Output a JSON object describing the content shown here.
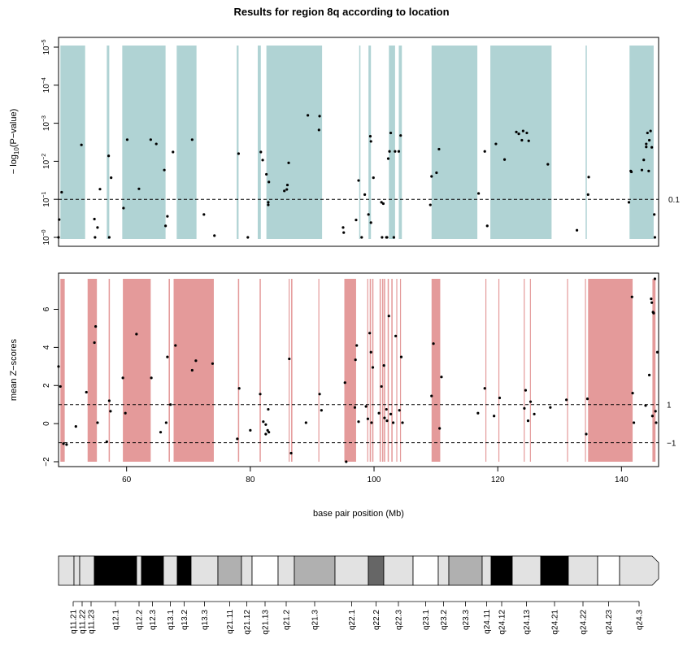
{
  "title": "Results for region 8q according to location",
  "chart_data": [
    {
      "type": "scatter",
      "panel": "p-values",
      "ylabel": "-log10(P-value)",
      "ylabel_parts": {
        "prefix": "− log",
        "sub": "10",
        "suffix": "(P−value)"
      },
      "y_scale": "log (inverted)",
      "ylim": [
        1,
        1e-05
      ],
      "y_ticks": [
        {
          "mantissa": "10",
          "exp": "−5",
          "value": 1e-05
        },
        {
          "mantissa": "10",
          "exp": "−4",
          "value": 0.0001
        },
        {
          "mantissa": "10",
          "exp": "−3",
          "value": 0.001
        },
        {
          "mantissa": "10",
          "exp": "−2",
          "value": 0.01
        },
        {
          "mantissa": "10",
          "exp": "−1",
          "value": 0.1
        },
        {
          "mantissa": "10",
          "exp": "−0",
          "value": 1
        }
      ],
      "threshold": {
        "value": 0.1,
        "label": "0.1",
        "style": "dashed"
      },
      "shade_color": "#b0d3d4",
      "shaded_regions": [
        [
          49.3,
          53.3
        ],
        [
          56.8,
          57.2
        ],
        [
          59.3,
          66.3
        ],
        [
          68.1,
          71.3
        ],
        [
          77.8,
          78.1
        ],
        [
          81.2,
          81.7
        ],
        [
          82.6,
          91.6
        ],
        [
          97.6,
          97.8
        ],
        [
          99.1,
          99.5
        ],
        [
          102.4,
          103.4
        ],
        [
          104.0,
          104.5
        ],
        [
          109.3,
          116.7
        ],
        [
          118.8,
          128.7
        ],
        [
          134.2,
          134.4
        ],
        [
          141.3,
          145.2
        ]
      ],
      "points": [
        [
          49.0,
          1.0
        ],
        [
          49.1,
          0.34
        ],
        [
          49.5,
          0.065
        ],
        [
          52.7,
          0.0037
        ],
        [
          54.8,
          0.33
        ],
        [
          54.9,
          1.0
        ],
        [
          55.3,
          0.55
        ],
        [
          55.7,
          0.054
        ],
        [
          57.1,
          0.0072
        ],
        [
          57.2,
          1.0
        ],
        [
          57.5,
          0.027
        ],
        [
          59.5,
          0.17
        ],
        [
          60.1,
          0.0027
        ],
        [
          62.0,
          0.053
        ],
        [
          63.9,
          0.0027
        ],
        [
          64.8,
          0.0035
        ],
        [
          66.1,
          0.017
        ],
        [
          66.3,
          0.5
        ],
        [
          66.6,
          0.28
        ],
        [
          67.5,
          0.0057
        ],
        [
          70.6,
          0.0027
        ],
        [
          72.5,
          0.25
        ],
        [
          74.2,
          0.9
        ],
        [
          78.1,
          0.0063
        ],
        [
          79.6,
          1.0
        ],
        [
          81.7,
          0.0057
        ],
        [
          82.0,
          0.0093
        ],
        [
          82.6,
          0.022
        ],
        [
          82.9,
          0.12
        ],
        [
          82.9,
          0.14
        ],
        [
          83.0,
          0.035
        ],
        [
          85.5,
          0.06
        ],
        [
          85.9,
          0.055
        ],
        [
          86.0,
          0.042
        ],
        [
          86.2,
          0.011
        ],
        [
          89.3,
          0.00062
        ],
        [
          91.1,
          0.0015
        ],
        [
          91.2,
          0.00065
        ],
        [
          95.0,
          0.55
        ],
        [
          95.1,
          0.75
        ],
        [
          97.1,
          0.35
        ],
        [
          97.5,
          0.032
        ],
        [
          98.0,
          1.0
        ],
        [
          98.5,
          0.075
        ],
        [
          99.1,
          0.25
        ],
        [
          99.4,
          0.0022
        ],
        [
          99.5,
          0.003
        ],
        [
          99.5,
          0.41
        ],
        [
          99.9,
          0.027
        ],
        [
          101.2,
          0.12
        ],
        [
          101.3,
          1.0
        ],
        [
          101.5,
          0.13
        ],
        [
          102.0,
          1.0
        ],
        [
          102.1,
          1.0
        ],
        [
          102.3,
          0.0085
        ],
        [
          102.5,
          0.0055
        ],
        [
          102.7,
          0.0018
        ],
        [
          103.2,
          1.0
        ],
        [
          103.4,
          0.0055
        ],
        [
          104.0,
          0.0055
        ],
        [
          104.3,
          0.0021
        ],
        [
          109.1,
          0.14
        ],
        [
          109.3,
          0.025
        ],
        [
          110.1,
          0.02
        ],
        [
          110.5,
          0.0048
        ],
        [
          116.9,
          0.07
        ],
        [
          117.9,
          0.0055
        ],
        [
          118.3,
          0.5
        ],
        [
          119.7,
          0.0035
        ],
        [
          121.1,
          0.009
        ],
        [
          123.0,
          0.0017
        ],
        [
          123.4,
          0.0019
        ],
        [
          123.9,
          0.0028
        ],
        [
          124.1,
          0.0016
        ],
        [
          124.7,
          0.0018
        ],
        [
          125.0,
          0.0029
        ],
        [
          128.1,
          0.012
        ],
        [
          132.8,
          0.65
        ],
        [
          134.6,
          0.075
        ],
        [
          134.7,
          0.026
        ],
        [
          141.2,
          0.12
        ],
        [
          141.5,
          0.018
        ],
        [
          141.6,
          0.019
        ],
        [
          143.3,
          0.017
        ],
        [
          143.6,
          0.0092
        ],
        [
          144.0,
          0.0035
        ],
        [
          144.0,
          0.0042
        ],
        [
          144.2,
          0.0018
        ],
        [
          144.4,
          0.018
        ],
        [
          144.5,
          0.0028
        ],
        [
          144.7,
          0.0016
        ],
        [
          144.9,
          0.0043
        ],
        [
          145.3,
          0.25
        ],
        [
          145.4,
          1.0
        ]
      ]
    },
    {
      "type": "scatter",
      "panel": "z-scores",
      "ylabel": "mean Z−scores",
      "ylim": [
        -2.0,
        7.6
      ],
      "y_ticks": [
        "−2",
        "0",
        "2",
        "4",
        "6"
      ],
      "y_tick_values": [
        -2,
        0,
        2,
        4,
        6
      ],
      "thresholds": [
        {
          "value": 1,
          "label": "1"
        },
        {
          "value": -1,
          "label": "−1"
        }
      ],
      "shade_color": "#e49a9a",
      "shaded_regions": [
        [
          49.3,
          50.0
        ],
        [
          53.7,
          55.2
        ],
        [
          57.1,
          57.3
        ],
        [
          59.4,
          63.9
        ],
        [
          66.8,
          67.0
        ],
        [
          67.6,
          74.1
        ],
        [
          78.0,
          78.2
        ],
        [
          81.5,
          81.7
        ],
        [
          86.2,
          86.3
        ],
        [
          86.6,
          86.8
        ],
        [
          91.0,
          91.1
        ],
        [
          95.2,
          97.1
        ],
        [
          98.9,
          99.0
        ],
        [
          99.3,
          99.5
        ],
        [
          99.7,
          99.9
        ],
        [
          100.9,
          101.1
        ],
        [
          101.3,
          101.5
        ],
        [
          101.6,
          101.8
        ],
        [
          102.2,
          102.4
        ],
        [
          102.8,
          103.0
        ],
        [
          103.6,
          103.7
        ],
        [
          104.2,
          104.3
        ],
        [
          109.3,
          110.7
        ],
        [
          118.0,
          118.1
        ],
        [
          120.1,
          120.2
        ],
        [
          124.2,
          124.3
        ],
        [
          125.2,
          125.3
        ],
        [
          131.2,
          131.3
        ],
        [
          134.1,
          134.2
        ],
        [
          134.6,
          141.8
        ],
        [
          145.0,
          145.5
        ]
      ],
      "points": [
        [
          49.0,
          3.0
        ],
        [
          49.3,
          1.95
        ],
        [
          49.8,
          -1.05
        ],
        [
          50.3,
          -1.1
        ],
        [
          51.8,
          -0.15
        ],
        [
          53.5,
          1.65
        ],
        [
          54.8,
          4.25
        ],
        [
          55.0,
          5.1
        ],
        [
          55.3,
          0.05
        ],
        [
          56.8,
          -0.95
        ],
        [
          57.2,
          1.2
        ],
        [
          57.4,
          0.65
        ],
        [
          59.4,
          2.4
        ],
        [
          59.8,
          0.55
        ],
        [
          61.6,
          4.7
        ],
        [
          64.0,
          2.4
        ],
        [
          65.5,
          -0.45
        ],
        [
          66.4,
          0.05
        ],
        [
          66.6,
          3.5
        ],
        [
          67.1,
          1.0
        ],
        [
          67.9,
          4.1
        ],
        [
          70.6,
          2.8
        ],
        [
          71.2,
          3.3
        ],
        [
          73.9,
          3.15
        ],
        [
          77.9,
          -0.8
        ],
        [
          78.2,
          1.85
        ],
        [
          80.0,
          -0.35
        ],
        [
          81.6,
          1.55
        ],
        [
          82.1,
          0.1
        ],
        [
          82.5,
          -0.05
        ],
        [
          82.5,
          -0.55
        ],
        [
          82.8,
          -0.35
        ],
        [
          82.9,
          0.75
        ],
        [
          83.0,
          -0.45
        ],
        [
          86.3,
          3.4
        ],
        [
          86.6,
          -1.55
        ],
        [
          89.0,
          0.05
        ],
        [
          91.2,
          1.55
        ],
        [
          91.5,
          0.7
        ],
        [
          95.3,
          2.15
        ],
        [
          95.5,
          -2.0
        ],
        [
          96.9,
          0.85
        ],
        [
          97.0,
          3.35
        ],
        [
          97.5,
          0.1
        ],
        [
          97.2,
          4.1
        ],
        [
          98.7,
          0.9
        ],
        [
          99.0,
          0.25
        ],
        [
          99.3,
          4.75
        ],
        [
          99.5,
          3.75
        ],
        [
          99.6,
          0.05
        ],
        [
          99.8,
          2.95
        ],
        [
          100.8,
          0.55
        ],
        [
          101.2,
          1.95
        ],
        [
          101.6,
          3.05
        ],
        [
          101.7,
          0.3
        ],
        [
          102.0,
          0.75
        ],
        [
          102.1,
          0.15
        ],
        [
          102.4,
          5.65
        ],
        [
          102.7,
          0.5
        ],
        [
          103.1,
          0.05
        ],
        [
          103.5,
          4.6
        ],
        [
          104.1,
          0.7
        ],
        [
          104.4,
          3.5
        ],
        [
          104.6,
          0.05
        ],
        [
          109.3,
          1.45
        ],
        [
          109.6,
          4.2
        ],
        [
          110.6,
          -0.25
        ],
        [
          110.9,
          2.45
        ],
        [
          116.8,
          0.55
        ],
        [
          117.9,
          1.85
        ],
        [
          119.4,
          0.4
        ],
        [
          120.3,
          1.35
        ],
        [
          124.3,
          0.8
        ],
        [
          124.5,
          1.75
        ],
        [
          124.9,
          0.15
        ],
        [
          125.3,
          1.15
        ],
        [
          125.9,
          0.5
        ],
        [
          128.5,
          0.85
        ],
        [
          131.1,
          1.25
        ],
        [
          134.3,
          -0.55
        ],
        [
          134.5,
          1.3
        ],
        [
          141.7,
          6.65
        ],
        [
          141.8,
          1.6
        ],
        [
          142.0,
          0.05
        ],
        [
          143.9,
          0.95
        ],
        [
          144.5,
          2.55
        ],
        [
          144.8,
          6.55
        ],
        [
          144.9,
          6.35
        ],
        [
          145.1,
          5.85
        ],
        [
          145.0,
          0.4
        ],
        [
          145.2,
          5.8
        ],
        [
          145.4,
          7.6
        ],
        [
          145.5,
          0.65
        ],
        [
          145.6,
          0.05
        ],
        [
          145.8,
          3.75
        ]
      ]
    }
  ],
  "x_axis": {
    "label": "base pair position (Mb)",
    "range": [
      49,
      146
    ],
    "ticks": [
      "60",
      "80",
      "100",
      "120",
      "140"
    ],
    "tick_values": [
      60,
      80,
      100,
      120,
      140
    ]
  },
  "ideogram": {
    "bands": [
      {
        "name": "q11.21",
        "start": 0,
        "end": 19,
        "color": "#e2e2e2"
      },
      {
        "name": "q11.22",
        "start": 19,
        "end": 26,
        "color": "#e2e2e2"
      },
      {
        "name": "q11.23",
        "start": 26,
        "end": 44,
        "color": "#e2e2e2"
      },
      {
        "name": "q12.1",
        "start": 44,
        "end": 96,
        "color": "#000000"
      },
      {
        "name": "q12.2",
        "start": 96,
        "end": 102,
        "color": "#e2e2e2"
      },
      {
        "name": "q12.3",
        "start": 102,
        "end": 129,
        "color": "#000000"
      },
      {
        "name": "q13.1",
        "start": 129,
        "end": 146,
        "color": "#e2e2e2"
      },
      {
        "name": "q13.2",
        "start": 146,
        "end": 163,
        "color": "#000000"
      },
      {
        "name": "q13.3",
        "start": 163,
        "end": 196,
        "color": "#e2e2e2"
      },
      {
        "name": "q21.11",
        "start": 196,
        "end": 225,
        "color": "#b0b0b0"
      },
      {
        "name": "q21.12",
        "start": 225,
        "end": 238,
        "color": "#e2e2e2"
      },
      {
        "name": "q21.13",
        "start": 238,
        "end": 270,
        "color": "#ffffff"
      },
      {
        "name": "q21.2",
        "start": 270,
        "end": 290,
        "color": "#e2e2e2"
      },
      {
        "name": "q21.3",
        "start": 290,
        "end": 340,
        "color": "#b0b0b0"
      },
      {
        "name": "q22.1",
        "start": 340,
        "end": 381,
        "color": "#e2e2e2"
      },
      {
        "name": "q22.2",
        "start": 381,
        "end": 400,
        "color": "#666666"
      },
      {
        "name": "q22.3",
        "start": 400,
        "end": 436,
        "color": "#e2e2e2"
      },
      {
        "name": "q23.1",
        "start": 436,
        "end": 467,
        "color": "#ffffff"
      },
      {
        "name": "q23.2",
        "start": 467,
        "end": 480,
        "color": "#e2e2e2"
      },
      {
        "name": "q23.3",
        "start": 480,
        "end": 521,
        "color": "#b0b0b0"
      },
      {
        "name": "q24.11",
        "start": 521,
        "end": 532,
        "color": "#e2e2e2"
      },
      {
        "name": "q24.12",
        "start": 532,
        "end": 558,
        "color": "#000000"
      },
      {
        "name": "q24.13",
        "start": 558,
        "end": 593,
        "color": "#e2e2e2"
      },
      {
        "name": "q24.21",
        "start": 593,
        "end": 627,
        "color": "#000000"
      },
      {
        "name": "q24.22",
        "start": 627,
        "end": 663,
        "color": "#e2e2e2"
      },
      {
        "name": "q24.23",
        "start": 663,
        "end": 690,
        "color": "#ffffff"
      },
      {
        "name": "q24.3",
        "start": 690,
        "end": 738,
        "color": "#e2e2e2"
      }
    ]
  }
}
